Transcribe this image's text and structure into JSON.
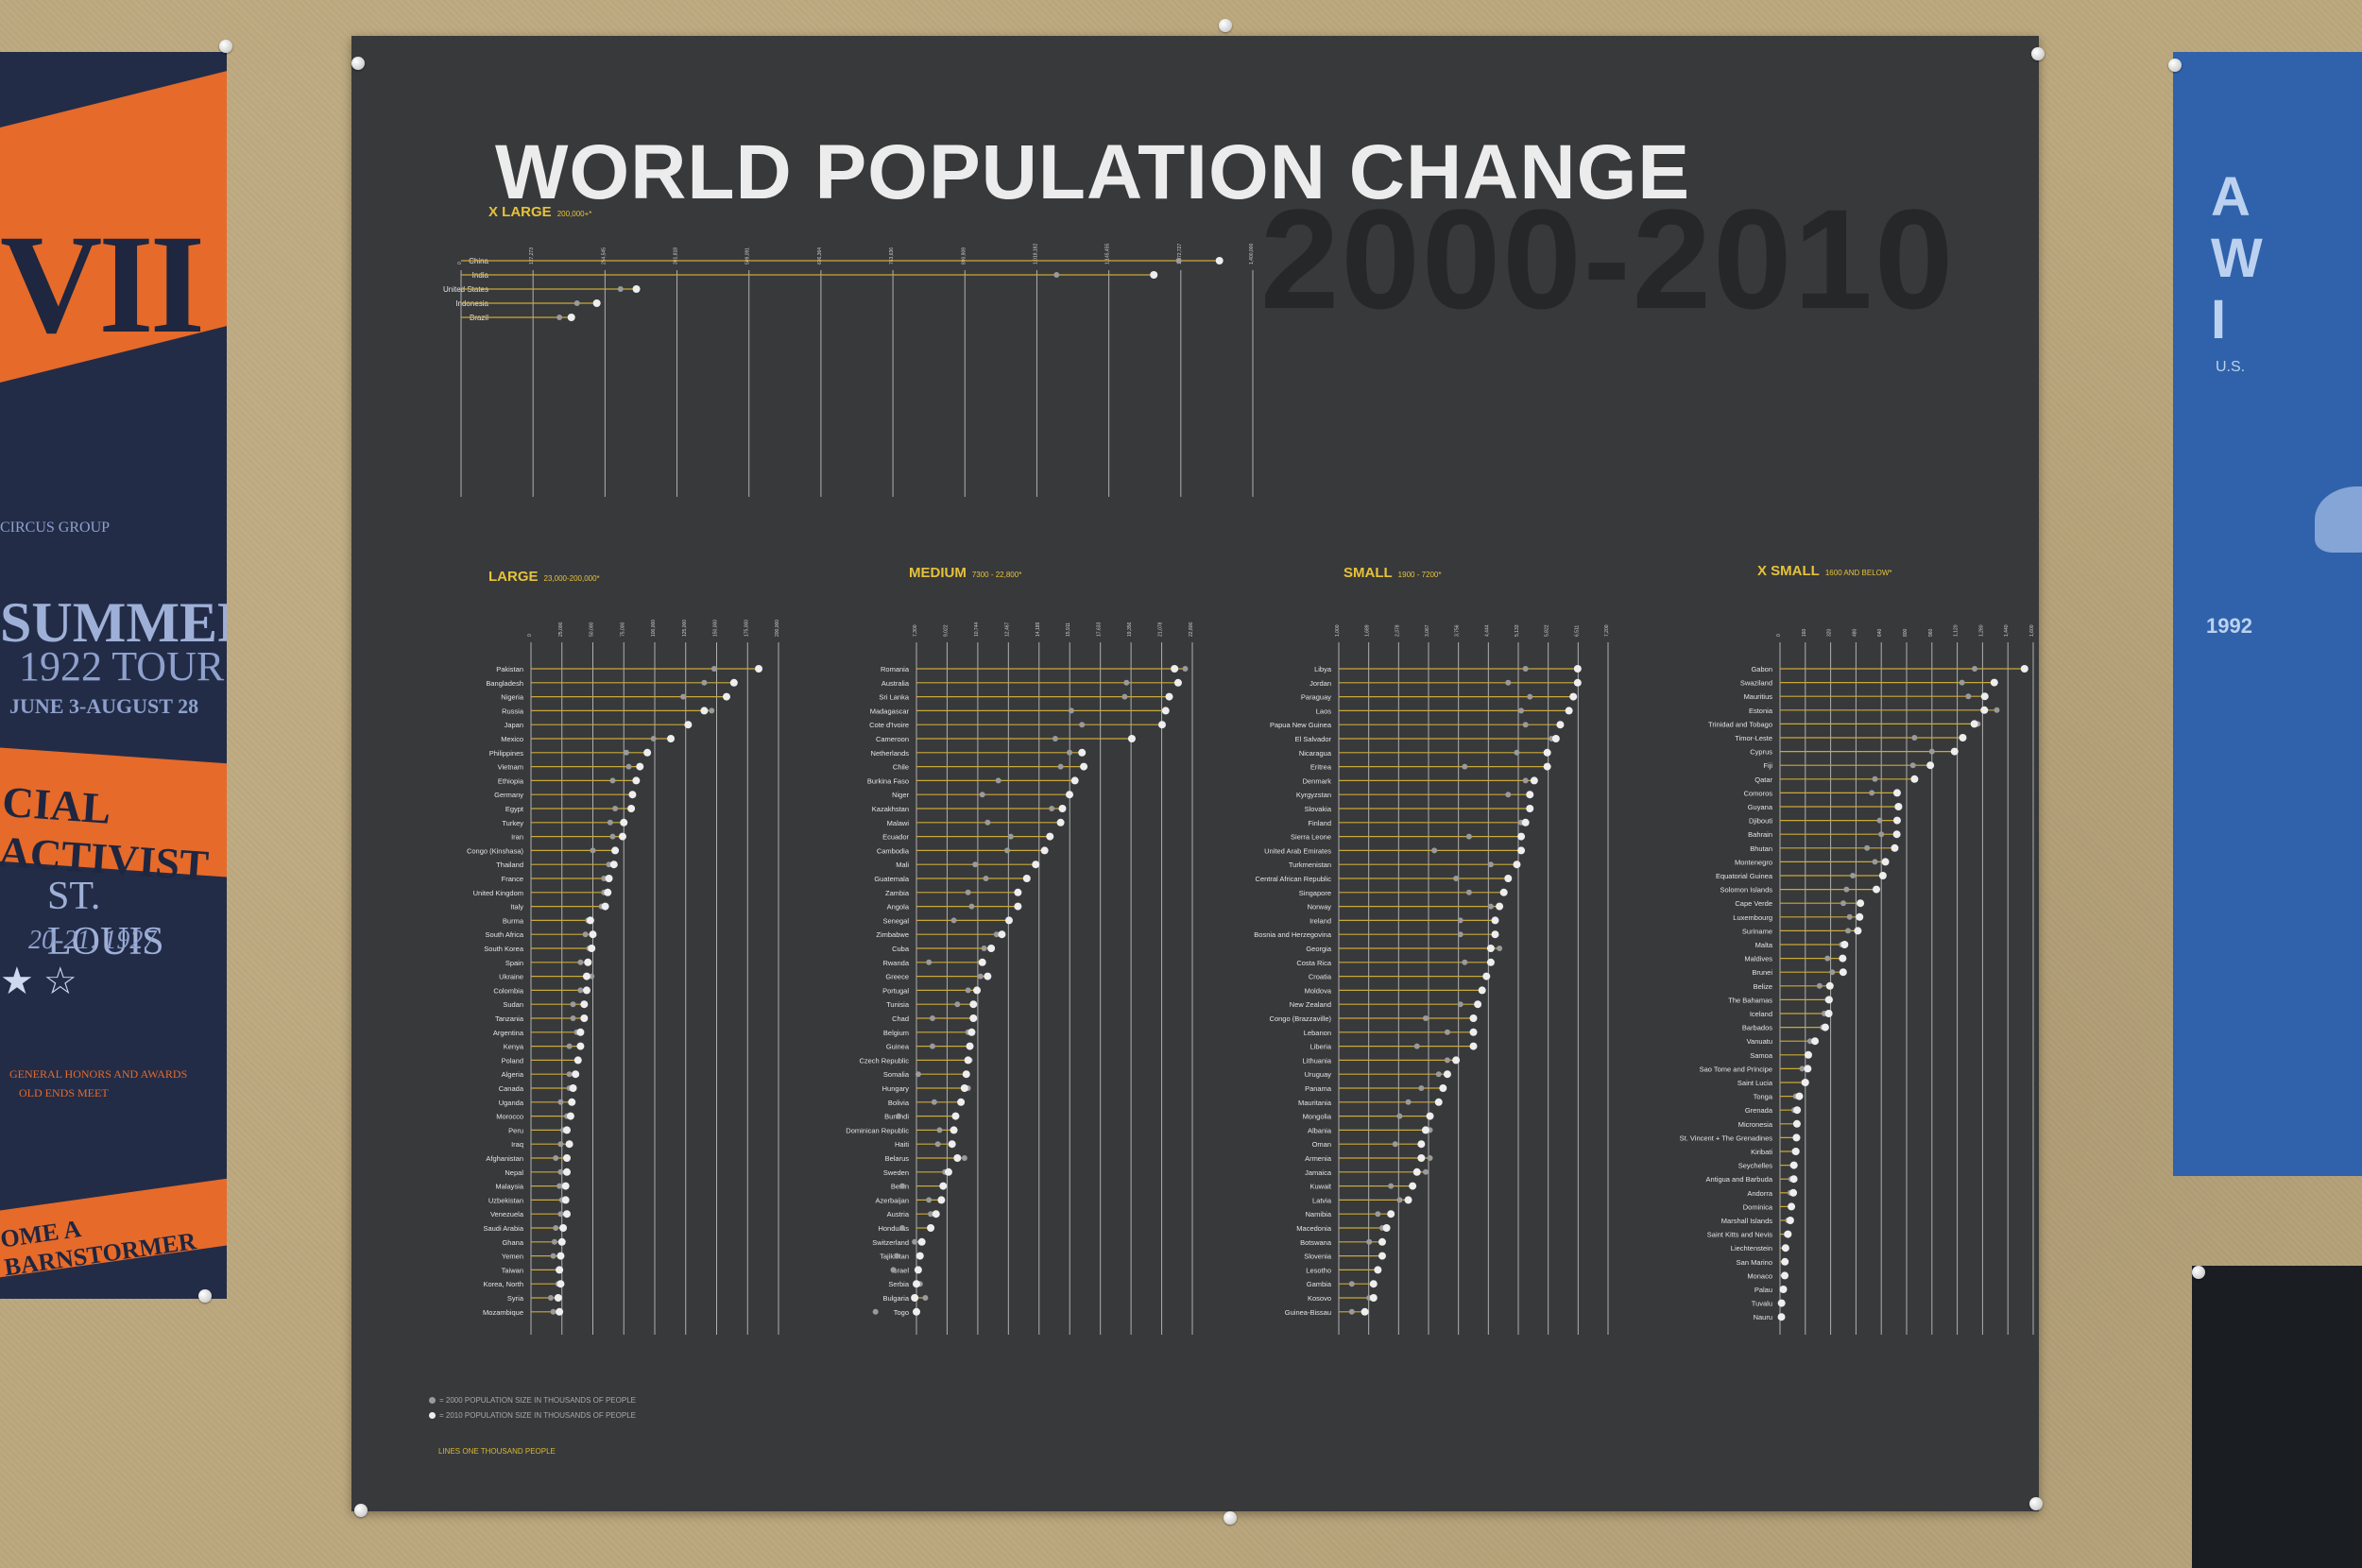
{
  "poster": {
    "title": "WORLD POPULATION CHANGE",
    "years": "2000-2010",
    "legend": {
      "item_2000": "= 2000 POPULATION SIZE IN THOUSANDS OF PEOPLE",
      "item_2010": "= 2010 POPULATION SIZE IN THOUSANDS OF PEOPLE",
      "note": "LINES ONE THOUSAND PEOPLE"
    },
    "colors": {
      "background": "#38393b",
      "line": "#c9a93a",
      "label": "#e6c23a",
      "dot_2010": "#eeeeee",
      "dot_2000": "#9a9a9a"
    }
  },
  "neighbors": {
    "left": {
      "band_text": "VII",
      "lines": [
        "CIRCUS GROUP",
        "SUMMER",
        "1922 TOUR",
        "JUNE 3-AUGUST 28",
        "ST. LOUIS",
        "20-21, 1927",
        "★ ☆",
        "GENERAL HONORS AND AWARDS",
        "OLD ENDS MEET"
      ],
      "activist": "CIAL ACTIVIST",
      "bottom": "OME A BARNSTORMER"
    },
    "right": {
      "lines": [
        "A",
        "W",
        "I"
      ],
      "sub": "U.S.",
      "year": "1992"
    }
  },
  "chart_data": [
    {
      "type": "dot-plot",
      "title": "X LARGE",
      "subtitle": "200,000+*",
      "series": [
        {
          "name": "2000"
        },
        {
          "name": "2010"
        }
      ],
      "categories": [
        "China",
        "India",
        "United States",
        "Indonesia",
        "Brazil"
      ],
      "values_2000": [
        1269000,
        1053000,
        282000,
        205000,
        174000
      ],
      "values_2010": [
        1341000,
        1225000,
        310000,
        240000,
        195000
      ],
      "xlim": [
        0,
        1400000
      ]
    },
    {
      "type": "dot-plot",
      "title": "LARGE",
      "subtitle": "23,000-200,000*",
      "categories": [
        "Pakistan",
        "Bangladesh",
        "Nigeria",
        "Russia",
        "Japan",
        "Mexico",
        "Philippines",
        "Vietnam",
        "Ethiopia",
        "Germany",
        "Egypt",
        "Turkey",
        "Iran",
        "Congo (Kinshasa)",
        "Thailand",
        "France",
        "United Kingdom",
        "Italy",
        "Burma",
        "South Africa",
        "South Korea",
        "Spain",
        "Ukraine",
        "Colombia",
        "Sudan",
        "Tanzania",
        "Argentina",
        "Kenya",
        "Poland",
        "Algeria",
        "Canada",
        "Uganda",
        "Morocco",
        "Peru",
        "Iraq",
        "Afghanistan",
        "Nepal",
        "Malaysia",
        "Uzbekistan",
        "Venezuela",
        "Saudi Arabia",
        "Ghana",
        "Yemen",
        "Taiwan",
        "Korea, North",
        "Syria",
        "Mozambique"
      ],
      "values_2000": [
        148000,
        140000,
        123000,
        146000,
        127000,
        99000,
        77000,
        79000,
        66000,
        82000,
        68000,
        64000,
        66000,
        50000,
        63000,
        59000,
        59000,
        57000,
        46000,
        44000,
        47000,
        40000,
        49000,
        40000,
        34000,
        34000,
        37000,
        31000,
        38000,
        31000,
        31000,
        24000,
        29000,
        26000,
        24000,
        20000,
        24000,
        23000,
        25000,
        24000,
        20000,
        19000,
        18000,
        22000,
        22000,
        16000,
        18000
      ],
      "values_2010": [
        184000,
        164000,
        158000,
        140000,
        127000,
        113000,
        94000,
        88000,
        85000,
        82000,
        81000,
        75000,
        74000,
        68000,
        67000,
        63000,
        62000,
        60000,
        48000,
        50000,
        49000,
        46000,
        45000,
        45000,
        43000,
        43000,
        40000,
        40000,
        38000,
        36000,
        34000,
        33000,
        32000,
        29000,
        31000,
        29000,
        29000,
        28000,
        28000,
        29000,
        26000,
        25000,
        24000,
        23000,
        24000,
        22000,
        23000
      ],
      "xlim": [
        0,
        200000
      ]
    },
    {
      "type": "dot-plot",
      "title": "MEDIUM",
      "subtitle": "7300 - 22,800*",
      "categories": [
        "Romania",
        "Australia",
        "Sri Lanka",
        "Madagascar",
        "Cote d'Ivoire",
        "Cameroon",
        "Netherlands",
        "Chile",
        "Burkina Faso",
        "Niger",
        "Kazakhstan",
        "Malawi",
        "Ecuador",
        "Cambodia",
        "Mali",
        "Guatemala",
        "Zambia",
        "Angola",
        "Senegal",
        "Zimbabwe",
        "Cuba",
        "Rwanda",
        "Greece",
        "Portugal",
        "Tunisia",
        "Chad",
        "Belgium",
        "Guinea",
        "Czech Republic",
        "Somalia",
        "Hungary",
        "Bolivia",
        "Burundi",
        "Dominican Republic",
        "Haiti",
        "Belarus",
        "Sweden",
        "Benin",
        "Azerbaijan",
        "Austria",
        "Honduras",
        "Switzerland",
        "Tajikistan",
        "Israel",
        "Serbia",
        "Bulgaria",
        "Togo"
      ],
      "values_2000": [
        22400,
        19100,
        19000,
        16000,
        16600,
        15100,
        15900,
        15400,
        11900,
        11000,
        14900,
        11300,
        12600,
        12400,
        10600,
        11200,
        10200,
        10400,
        9400,
        11800,
        11100,
        8000,
        10900,
        10200,
        9600,
        8200,
        10200,
        8200,
        10300,
        7400,
        10200,
        8300,
        6300,
        8600,
        8500,
        10000,
        8900,
        6500,
        8000,
        8100,
        6500,
        7200,
        6200,
        6000,
        7500,
        7800,
        5000
      ],
      "values_2010": [
        21800,
        22000,
        21500,
        21300,
        21100,
        19400,
        16600,
        16700,
        16200,
        15900,
        15500,
        15400,
        14800,
        14500,
        14000,
        13500,
        13000,
        13000,
        12500,
        12100,
        11500,
        11000,
        11300,
        10700,
        10500,
        10500,
        10400,
        10300,
        10200,
        10100,
        10000,
        9800,
        9500,
        9400,
        9300,
        9600,
        9100,
        8800,
        8700,
        8400,
        8100,
        7600,
        7500,
        7400,
        7300,
        7200,
        7300
      ],
      "xlim": [
        7300,
        22800
      ]
    },
    {
      "type": "dot-plot",
      "title": "SMALL",
      "subtitle": "1900 - 7200*",
      "categories": [
        "Libya",
        "Jordan",
        "Paraguay",
        "Laos",
        "Papua New Guinea",
        "El Salvador",
        "Nicaragua",
        "Eritrea",
        "Denmark",
        "Kyrgyzstan",
        "Slovakia",
        "Finland",
        "Sierra Leone",
        "United Arab Emirates",
        "Turkmenistan",
        "Central African Republic",
        "Singapore",
        "Norway",
        "Ireland",
        "Bosnia and Herzegovina",
        "Georgia",
        "Costa Rica",
        "Croatia",
        "Moldova",
        "New Zealand",
        "Congo (Brazzaville)",
        "Lebanon",
        "Liberia",
        "Lithuania",
        "Uruguay",
        "Panama",
        "Mauritania",
        "Mongolia",
        "Albania",
        "Oman",
        "Armenia",
        "Jamaica",
        "Kuwait",
        "Latvia",
        "Namibia",
        "Macedonia",
        "Botswana",
        "Slovenia",
        "Lesotho",
        "Gambia",
        "Kosovo",
        "Guinea-Bissau"
      ],
      "values_2000": [
        5300,
        4900,
        5400,
        5200,
        5300,
        5900,
        5100,
        3900,
        5300,
        4900,
        5400,
        5200,
        4000,
        3200,
        4500,
        3700,
        4000,
        4500,
        3800,
        3800,
        4700,
        3900,
        4400,
        4300,
        3800,
        3000,
        3500,
        2800,
        3500,
        3300,
        2900,
        2600,
        2400,
        3100,
        2300,
        3100,
        3000,
        2200,
        2400,
        1900,
        2000,
        1700,
        2000,
        1900,
        1300,
        1700,
        1300
      ],
      "values_2010": [
        6500,
        6500,
        6400,
        6300,
        6100,
        6000,
        5800,
        5800,
        5500,
        5400,
        5400,
        5300,
        5200,
        5200,
        5100,
        4900,
        4800,
        4700,
        4600,
        4600,
        4500,
        4500,
        4400,
        4300,
        4200,
        4100,
        4100,
        4100,
        3700,
        3500,
        3400,
        3300,
        3100,
        3000,
        2900,
        2900,
        2800,
        2700,
        2600,
        2200,
        2100,
        2000,
        2000,
        1900,
        1800,
        1800,
        1600
      ],
      "xlim": [
        1000,
        7200
      ]
    },
    {
      "type": "dot-plot",
      "title": "X SMALL",
      "subtitle": "1600 AND BELOW*",
      "categories": [
        "Gabon",
        "Swaziland",
        "Mauritius",
        "Estonia",
        "Trinidad and Tobago",
        "Timor-Leste",
        "Cyprus",
        "Fiji",
        "Qatar",
        "Comoros",
        "Guyana",
        "Djibouti",
        "Bahrain",
        "Bhutan",
        "Montenegro",
        "Equatorial Guinea",
        "Solomon Islands",
        "Cape Verde",
        "Luxembourg",
        "Suriname",
        "Malta",
        "Maldives",
        "Brunei",
        "Belize",
        "The Bahamas",
        "Iceland",
        "Barbados",
        "Vanuatu",
        "Samoa",
        "Sao Tome and Principe",
        "Saint Lucia",
        "Tonga",
        "Grenada",
        "Micronesia",
        "St. Vincent + The Grenadines",
        "Kiribati",
        "Seychelles",
        "Antigua and Barbuda",
        "Andorra",
        "Dominica",
        "Marshall Islands",
        "Saint Kitts and Nevis",
        "Liechtenstein",
        "San Marino",
        "Monaco",
        "Palau",
        "Tuvalu",
        "Nauru"
      ],
      "values_2000": [
        1230,
        1150,
        1190,
        1370,
        1250,
        850,
        960,
        840,
        600,
        580,
        740,
        630,
        640,
        550,
        600,
        460,
        420,
        400,
        440,
        430,
        390,
        300,
        330,
        250,
        300,
        280,
        270,
        190,
        180,
        140,
        150,
        100,
        90,
        110,
        110,
        90,
        80,
        70,
        65,
        70,
        50,
        40,
        33,
        27,
        32,
        19,
        10,
        10
      ],
      "values_2010": [
        1545,
        1354,
        1294,
        1291,
        1228,
        1155,
        1103,
        950,
        850,
        740,
        749,
        740,
        738,
        725,
        666,
        650,
        609,
        508,
        503,
        492,
        408,
        396,
        399,
        315,
        310,
        308,
        286,
        221,
        179,
        175,
        160,
        122,
        108,
        107,
        104,
        100,
        88,
        87,
        84,
        72,
        65,
        50,
        35,
        31,
        30,
        21,
        10,
        9
      ],
      "xlim": [
        0,
        1600
      ]
    }
  ]
}
